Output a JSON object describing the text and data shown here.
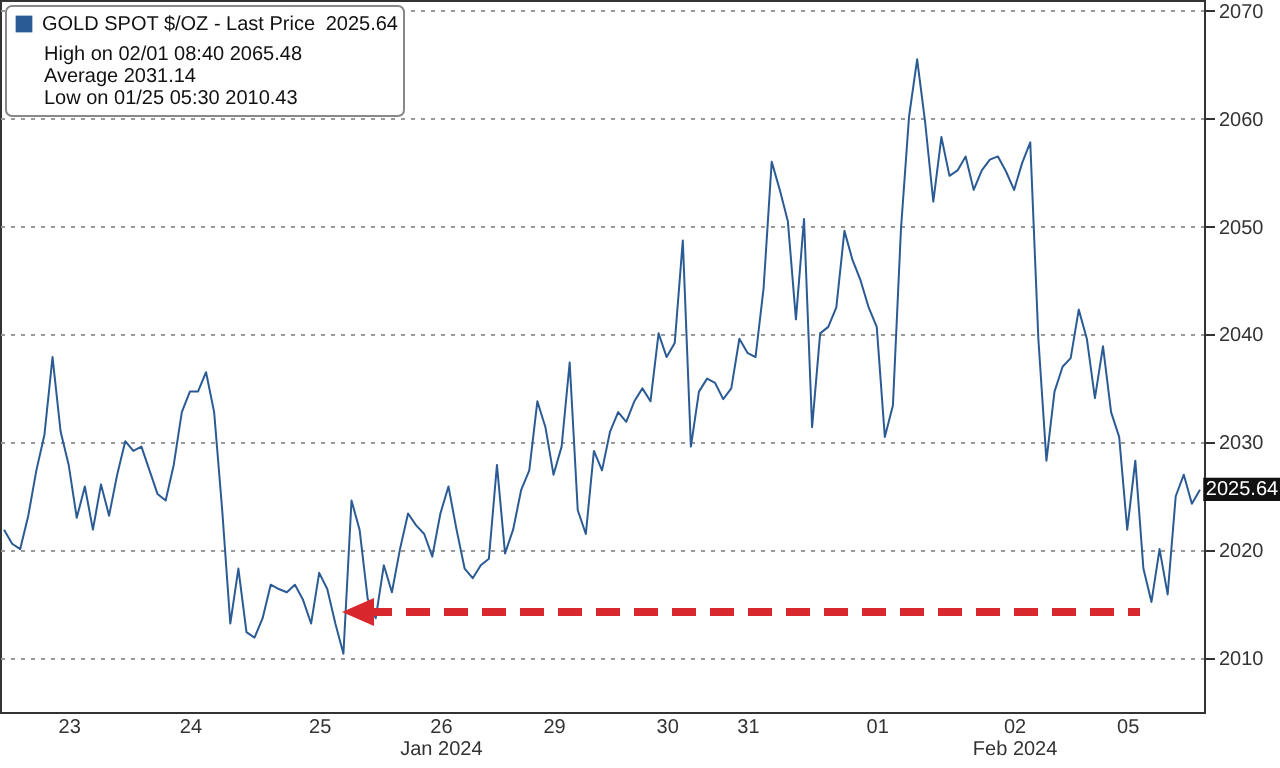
{
  "chart_data": {
    "type": "line",
    "categories": [
      null,
      null,
      null,
      null,
      null,
      null,
      null,
      null,
      "23",
      null,
      null,
      null,
      null,
      null,
      null,
      null,
      null,
      null,
      null,
      null,
      null,
      null,
      null,
      "24",
      null,
      null,
      null,
      null,
      null,
      null,
      null,
      null,
      null,
      null,
      null,
      null,
      null,
      null,
      null,
      "25",
      null,
      null,
      null,
      null,
      null,
      null,
      null,
      null,
      null,
      null,
      null,
      null,
      null,
      null,
      "26\nJan 2024",
      null,
      null,
      null,
      null,
      null,
      null,
      null,
      null,
      null,
      null,
      null,
      null,
      null,
      "29",
      null,
      null,
      null,
      null,
      null,
      null,
      null,
      null,
      null,
      null,
      null,
      null,
      null,
      "30",
      null,
      null,
      null,
      null,
      null,
      null,
      null,
      null,
      null,
      "31",
      null,
      null,
      null,
      null,
      null,
      null,
      null,
      null,
      null,
      null,
      null,
      null,
      null,
      null,
      null,
      "01",
      null,
      null,
      null,
      null,
      null,
      null,
      null,
      null,
      null,
      null,
      null,
      null,
      null,
      null,
      null,
      null,
      "02\nFeb 2024",
      null,
      null,
      null,
      null,
      null,
      null,
      null,
      null,
      null,
      null,
      null,
      null,
      null,
      "05",
      null,
      null,
      null,
      null,
      null,
      null,
      null,
      null,
      null
    ],
    "series": [
      {
        "name": "GOLD SPOT $/OZ - Last Price",
        "color": "#2b5b94",
        "values": [
          2021.9,
          2020.6,
          2020.1,
          2023.2,
          2027.4,
          2030.7,
          2037.9,
          2031.0,
          2027.9,
          2023.0,
          2025.9,
          2021.9,
          2026.1,
          2023.2,
          2027.0,
          2030.1,
          2029.2,
          2029.6,
          2027.4,
          2025.2,
          2024.6,
          2027.9,
          2032.8,
          2034.7,
          2034.7,
          2036.5,
          2032.8,
          2023.7,
          2013.2,
          2018.3,
          2012.4,
          2011.9,
          2013.7,
          2016.8,
          2016.4,
          2016.1,
          2016.8,
          2015.4,
          2013.2,
          2017.9,
          2016.4,
          2013.2,
          2010.4,
          2024.6,
          2021.9,
          2015.5,
          2013.7,
          2018.6,
          2016.1,
          2020.1,
          2023.4,
          2022.3,
          2021.5,
          2019.4,
          2023.4,
          2025.9,
          2021.9,
          2018.3,
          2017.4,
          2018.6,
          2019.2,
          2027.9,
          2019.7,
          2021.9,
          2025.6,
          2027.4,
          2033.8,
          2031.4,
          2027.0,
          2029.6,
          2037.4,
          2023.7,
          2021.5,
          2029.2,
          2027.4,
          2031.0,
          2032.8,
          2031.9,
          2033.8,
          2035.0,
          2033.8,
          2040.1,
          2037.9,
          2039.2,
          2048.7,
          2029.6,
          2034.7,
          2035.9,
          2035.5,
          2034.0,
          2035.0,
          2039.6,
          2038.3,
          2037.9,
          2044.3,
          2056.0,
          2053.4,
          2050.5,
          2041.4,
          2050.7,
          2031.4,
          2040.1,
          2040.7,
          2042.5,
          2049.6,
          2046.9,
          2045.0,
          2042.5,
          2040.7,
          2030.5,
          2033.4,
          2049.8,
          2060.2,
          2065.5,
          2059.6,
          2052.3,
          2058.3,
          2054.7,
          2055.2,
          2056.5,
          2053.4,
          2055.2,
          2056.2,
          2056.5,
          2055.1,
          2053.4,
          2055.9,
          2057.8,
          2039.6,
          2028.3,
          2034.7,
          2037.0,
          2037.8,
          2042.3,
          2039.6,
          2034.1,
          2038.9,
          2032.8,
          2030.5,
          2021.9,
          2028.3,
          2018.3,
          2015.2,
          2020.1,
          2015.9,
          2025.0,
          2027.0,
          2024.3,
          2025.6
        ]
      }
    ],
    "ylim": [
      2005,
      2071
    ],
    "yticks": [
      2010,
      2020,
      2030,
      2040,
      2050,
      2060,
      2070
    ],
    "grid": "y",
    "legend": "top left",
    "line_style": "solid",
    "annotations": [
      {
        "text": "2025.64",
        "y": 2025.64
      },
      "2025.64",
      "High on 02/01 08:40 2065.48",
      "Average 2031.14",
      "Low on 01/25 05:30 2010.43"
    ]
  }
}
